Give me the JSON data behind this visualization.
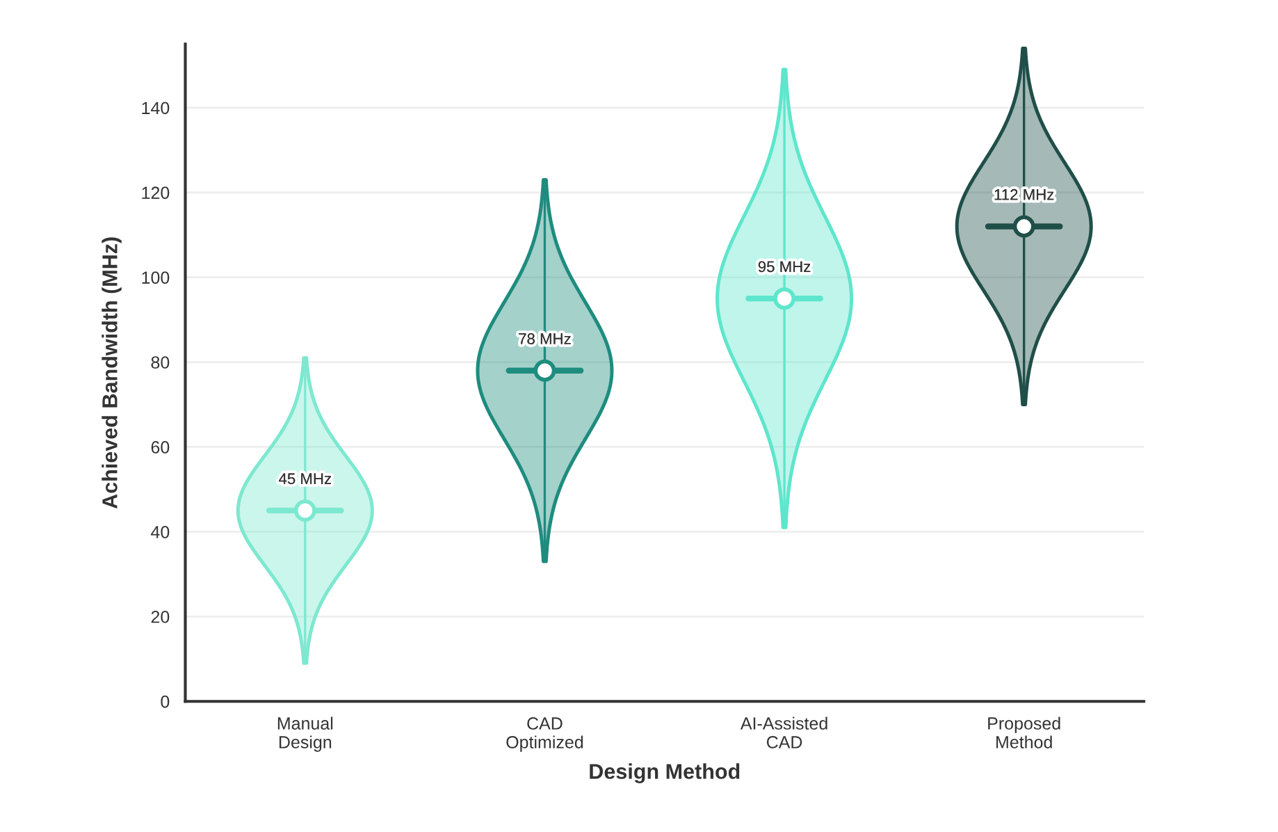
{
  "chart_data": {
    "type": "scatter",
    "categories": [
      "Manual\nDesign",
      "CAD\nOptimized",
      "AI-Assisted\nCAD",
      "Proposed\nMethod"
    ],
    "values": [
      45,
      78,
      95,
      112
    ],
    "errors": [
      [
        9,
        81
      ],
      [
        33,
        123
      ],
      [
        41,
        149
      ],
      [
        70,
        154
      ]
    ],
    "colors": [
      "#7de8d0",
      "#1e8c7e",
      "#5ee6cc",
      "#1f4f48"
    ],
    "value_labels": [
      "45 MHz",
      "78 MHz",
      "95 MHz",
      "112 MHz"
    ],
    "marker": "circle",
    "xlabel": "Design Method",
    "ylabel": "Achieved Bandwidth (MHz)",
    "ylim": [
      0,
      155
    ],
    "yticks": [
      0,
      20,
      40,
      60,
      80,
      100,
      120,
      140
    ],
    "grid": "y"
  }
}
